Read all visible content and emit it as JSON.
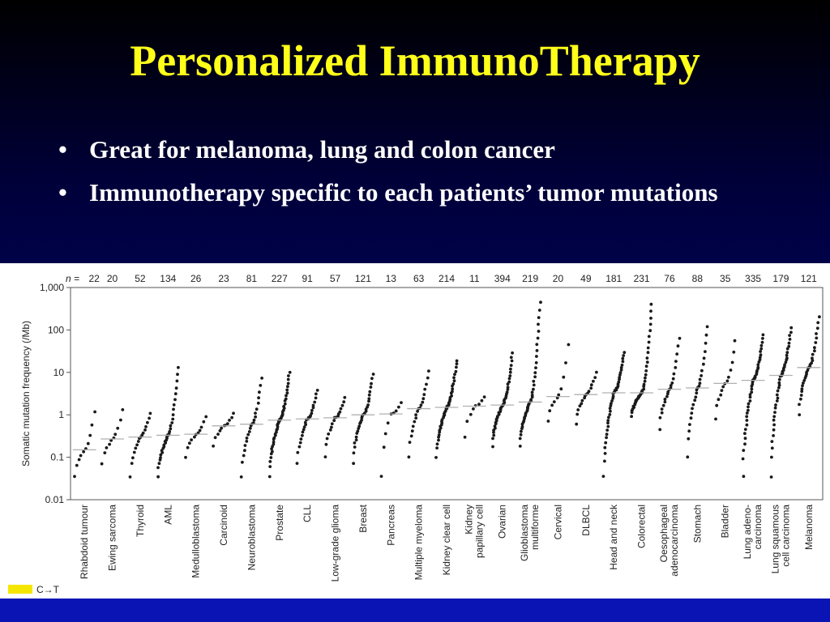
{
  "slide": {
    "title": "Personalized ImmunoTherapy",
    "bullets": [
      "Great for melanoma, lung and colon cancer",
      "Immunotherapy specific to each patients’ tumor mutations"
    ],
    "bullet_marker": "•"
  },
  "colors": {
    "title": "#ffff1a",
    "bullet_text": "#ffffff",
    "background_top": "#000000",
    "background_bottom": "#000a8c",
    "legend_swatch": "#f5e600",
    "points": "#1a1a1a",
    "median_line": "#b0b0b0"
  },
  "chart_data": {
    "type": "scatter",
    "ylabel": "Somatic mutation frequency (/Mb)",
    "yscale": "log",
    "ylim": [
      0.01,
      1000
    ],
    "yticks": [
      "1,000",
      "100",
      "10",
      "1",
      "0.1",
      "0.01"
    ],
    "ytick_values": [
      1000,
      100,
      10,
      1,
      0.1,
      0.01
    ],
    "n_prefix": "n =",
    "legend": {
      "swatch_label": "C→T"
    },
    "categories": [
      {
        "name": "Rhabdoid tumour",
        "n": "22",
        "median": 0.15,
        "min": 0.035,
        "max": 1.2
      },
      {
        "name": "Ewing sarcoma",
        "n": "20",
        "median": 0.27,
        "min": 0.07,
        "max": 1.3
      },
      {
        "name": "Thyroid",
        "n": "52",
        "median": 0.3,
        "min": 0.035,
        "max": 1.1
      },
      {
        "name": "AML",
        "n": "134",
        "median": 0.33,
        "min": 0.035,
        "max": 13
      },
      {
        "name": "Medulloblastoma",
        "n": "26",
        "median": 0.35,
        "min": 0.1,
        "max": 0.9
      },
      {
        "name": "Carcinoid",
        "n": "23",
        "median": 0.55,
        "min": 0.18,
        "max": 1.1
      },
      {
        "name": "Neuroblastoma",
        "n": "81",
        "median": 0.6,
        "min": 0.035,
        "max": 7.5
      },
      {
        "name": "Prostate",
        "n": "227",
        "median": 0.75,
        "min": 0.035,
        "max": 10
      },
      {
        "name": "CLL",
        "n": "91",
        "median": 0.8,
        "min": 0.07,
        "max": 3.8
      },
      {
        "name": "Low-grade glioma",
        "n": "57",
        "median": 0.85,
        "min": 0.1,
        "max": 2.5
      },
      {
        "name": "Breast",
        "n": "121",
        "median": 1.0,
        "min": 0.07,
        "max": 9
      },
      {
        "name": "Pancreas",
        "n": "13",
        "median": 1.05,
        "min": 0.035,
        "max": 1.9
      },
      {
        "name": "Multiple myeloma",
        "n": "63",
        "median": 1.4,
        "min": 0.1,
        "max": 11
      },
      {
        "name": "Kidney clear cell",
        "n": "214",
        "median": 1.5,
        "min": 0.1,
        "max": 19
      },
      {
        "name": "Kidney papillary cell",
        "n": "11",
        "median": 1.6,
        "min": 0.3,
        "max": 2.7
      },
      {
        "name": "Ovarian",
        "n": "394",
        "median": 1.7,
        "min": 0.18,
        "max": 28
      },
      {
        "name": "Glioblastoma multiforme",
        "n": "219",
        "median": 2.0,
        "min": 0.18,
        "max": 450
      },
      {
        "name": "Cervical",
        "n": "20",
        "median": 2.7,
        "min": 0.7,
        "max": 45
      },
      {
        "name": "DLBCL",
        "n": "49",
        "median": 3.0,
        "min": 0.6,
        "max": 10
      },
      {
        "name": "Head and neck",
        "n": "181",
        "median": 3.3,
        "min": 0.035,
        "max": 30
      },
      {
        "name": "Colorectal",
        "n": "231",
        "median": 3.3,
        "min": 0.9,
        "max": 400
      },
      {
        "name": "Oesophageal adenocarcinoma",
        "n": "76",
        "median": 4.0,
        "min": 0.45,
        "max": 65
      },
      {
        "name": "Stomach",
        "n": "88",
        "median": 4.3,
        "min": 0.1,
        "max": 120
      },
      {
        "name": "Bladder",
        "n": "35",
        "median": 5.5,
        "min": 0.8,
        "max": 55
      },
      {
        "name": "Lung adeno-carcinoma",
        "n": "335",
        "median": 6.5,
        "min": 0.035,
        "max": 75
      },
      {
        "name": "Lung squamous cell carcinoma",
        "n": "179",
        "median": 8.5,
        "min": 0.035,
        "max": 110
      },
      {
        "name": "Melanoma",
        "n": "121",
        "median": 13,
        "min": 1.0,
        "max": 200
      }
    ]
  }
}
